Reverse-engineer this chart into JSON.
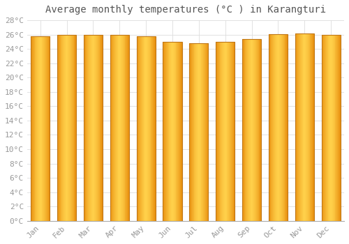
{
  "months": [
    "Jan",
    "Feb",
    "Mar",
    "Apr",
    "May",
    "Jun",
    "Jul",
    "Aug",
    "Sep",
    "Oct",
    "Nov",
    "Dec"
  ],
  "temperatures": [
    25.8,
    26.0,
    26.0,
    26.0,
    25.8,
    25.0,
    24.8,
    25.0,
    25.4,
    26.1,
    26.2,
    26.0
  ],
  "bar_color_center": "#FFD04A",
  "bar_color_edge": "#E89010",
  "bar_border_color": "#C07818",
  "background_color": "#FFFFFF",
  "plot_bg_color": "#FFFFFF",
  "grid_color": "#DDDDDD",
  "title": "Average monthly temperatures (°C ) in Karangturi",
  "title_fontsize": 10,
  "tick_label_color": "#999999",
  "axis_label_fontsize": 8,
  "ylim": [
    0,
    28
  ],
  "ytick_interval": 2,
  "font_family": "monospace"
}
